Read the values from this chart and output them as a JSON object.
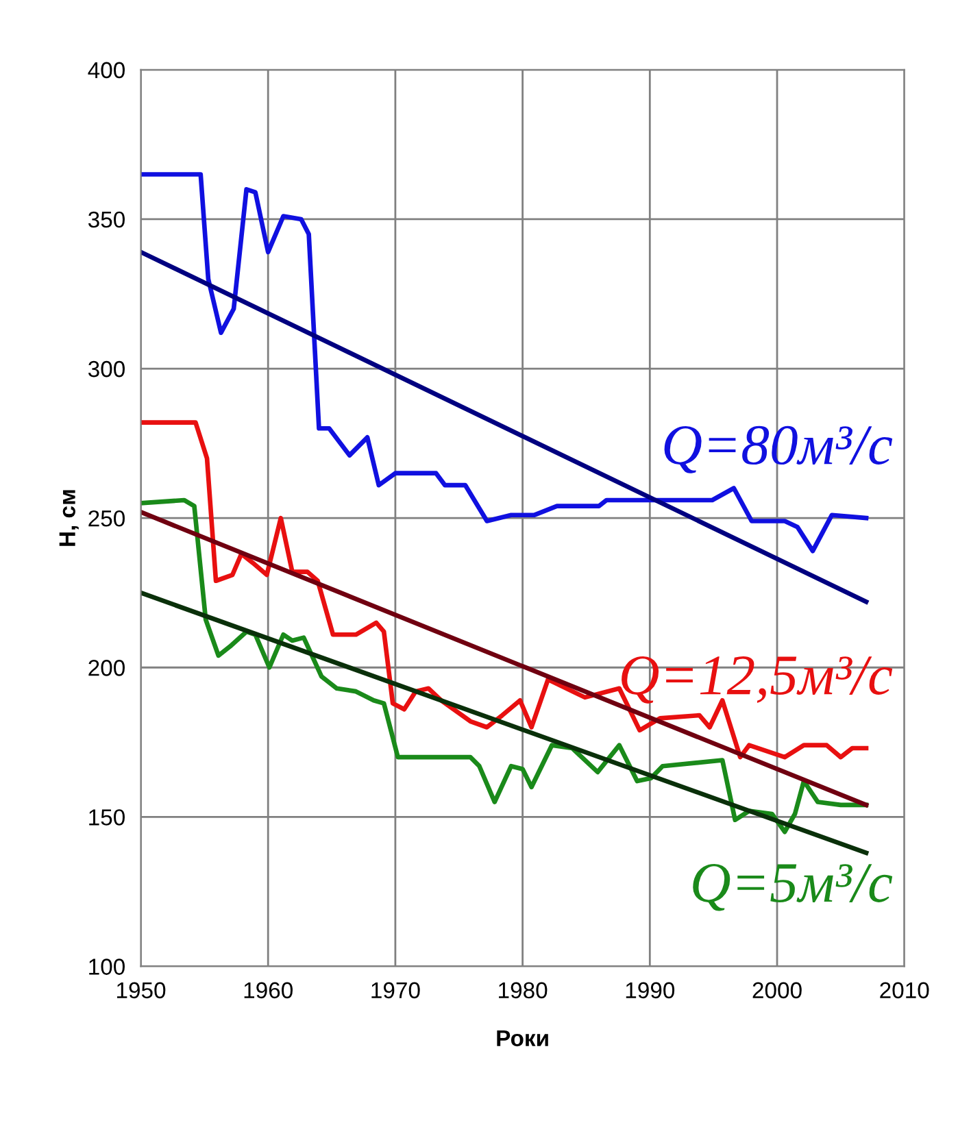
{
  "chart_data": {
    "type": "line",
    "xlabel": "Роки",
    "ylabel": "H, см",
    "xlim": [
      1950,
      2010
    ],
    "xticks": [
      1950,
      1960,
      1970,
      1980,
      1990,
      2000,
      2010
    ],
    "ylim": [
      100,
      400
    ],
    "yticks": [
      100,
      150,
      200,
      250,
      300,
      350,
      400
    ],
    "grid": true,
    "legend": false,
    "series": [
      {
        "name": "Q=80м³/с",
        "color": "#1010e0",
        "x": [
          1950,
          1954.7,
          1955.3,
          1956.3,
          1957.3,
          1958.3,
          1959.0,
          1960.0,
          1961.2,
          1962.6,
          1963.2,
          1964.0,
          1964.8,
          1966.4,
          1967.8,
          1968.7,
          1970.0,
          1973.2,
          1973.9,
          1975.5,
          1977.2,
          1979.1,
          1980.9,
          1982.7,
          1986.0,
          1986.6,
          1994.9,
          1996.6,
          1998.0,
          2000.6,
          2001.6,
          2002.8,
          2004.3,
          2007
        ],
        "values": [
          365,
          365,
          330,
          312,
          320,
          360,
          359,
          339,
          351,
          350,
          345,
          280,
          280,
          271,
          277,
          261,
          265,
          265,
          261,
          261,
          249,
          251,
          251,
          254,
          254,
          256,
          256,
          260,
          249,
          249,
          247,
          239,
          251,
          250
        ]
      },
      {
        "name": "Q=12,5м³/с",
        "color": "#e81010",
        "x": [
          1950,
          1954.3,
          1955.2,
          1955.9,
          1957.2,
          1957.9,
          1958.8,
          1959.9,
          1961.0,
          1961.9,
          1963.1,
          1963.9,
          1965.1,
          1966.9,
          1968.5,
          1969.1,
          1969.8,
          1970.7,
          1971.6,
          1972.6,
          1973.6,
          1975.9,
          1977.2,
          1978.4,
          1979.8,
          1980.7,
          1982.0,
          1984.9,
          1987.6,
          1989.2,
          1990.8,
          1993.9,
          1994.7,
          1995.7,
          1997.1,
          1997.8,
          2000.6,
          2002.1,
          2003.9,
          2005.0,
          2005.9,
          2007
        ],
        "values": [
          282,
          282,
          270,
          229,
          231,
          238,
          235,
          231,
          250,
          232,
          232,
          229,
          211,
          211,
          215,
          212,
          188,
          186,
          192,
          193,
          189,
          182,
          180,
          184,
          189,
          180,
          196,
          190,
          193,
          179,
          183,
          184,
          180,
          189,
          170,
          174,
          170,
          174,
          174,
          170,
          173,
          173
        ]
      },
      {
        "name": "Q=5м³/с",
        "color": "#1a8a1a",
        "x": [
          1950,
          1953.4,
          1954.2,
          1955.1,
          1956.1,
          1957.0,
          1958.3,
          1959.0,
          1960.1,
          1961.2,
          1961.9,
          1962.8,
          1964.2,
          1965.4,
          1966.9,
          1968.3,
          1969.1,
          1970.2,
          1970.9,
          1975.9,
          1976.6,
          1977.8,
          1979.1,
          1980.0,
          1980.7,
          1982.3,
          1983.9,
          1985.9,
          1987.6,
          1989.0,
          1990.1,
          1991.0,
          1995.7,
          1996.7,
          1997.8,
          1999.6,
          2000.6,
          2001.4,
          2002.1,
          2003.2,
          2005.0,
          2007
        ],
        "values": [
          255,
          256,
          254,
          216,
          204,
          207,
          212,
          211,
          200,
          211,
          209,
          210,
          197,
          193,
          192,
          189,
          188,
          170,
          170,
          170,
          167,
          155,
          167,
          166,
          160,
          174,
          173,
          165,
          174,
          162,
          163,
          167,
          169,
          149,
          152,
          151,
          145,
          151,
          162,
          155,
          154,
          154
        ]
      },
      {
        "color": "#000080",
        "x": [
          1950,
          2007
        ],
        "values": [
          339,
          222
        ]
      },
      {
        "color": "#700010",
        "x": [
          1950,
          2007
        ],
        "values": [
          252,
          154
        ]
      },
      {
        "color": "#0a300a",
        "x": [
          1950,
          2007
        ],
        "values": [
          225,
          138
        ]
      }
    ]
  }
}
